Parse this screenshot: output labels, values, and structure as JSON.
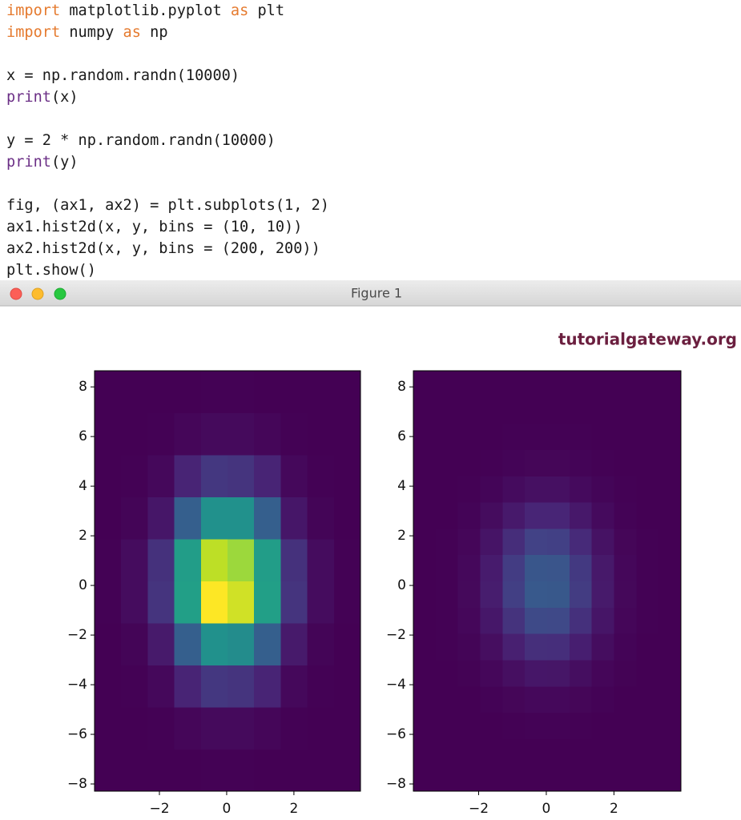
{
  "code": {
    "lines": [
      [
        {
          "text": "import",
          "color": "#e57a2e"
        },
        {
          "text": " matplotlib.pyplot ",
          "color": "#1a1a1a"
        },
        {
          "text": "as",
          "color": "#e57a2e"
        },
        {
          "text": " plt",
          "color": "#1a1a1a"
        }
      ],
      [
        {
          "text": "import",
          "color": "#e57a2e"
        },
        {
          "text": " numpy ",
          "color": "#1a1a1a"
        },
        {
          "text": "as",
          "color": "#e57a2e"
        },
        {
          "text": " np",
          "color": "#1a1a1a"
        }
      ],
      [],
      [
        {
          "text": "x = np.random.randn(10000)",
          "color": "#1a1a1a"
        }
      ],
      [
        {
          "text": "print",
          "color": "#6b2f86"
        },
        {
          "text": "(x)",
          "color": "#1a1a1a"
        }
      ],
      [],
      [
        {
          "text": "y = 2 * np.random.randn(10000)",
          "color": "#1a1a1a"
        }
      ],
      [
        {
          "text": "print",
          "color": "#6b2f86"
        },
        {
          "text": "(y)",
          "color": "#1a1a1a"
        }
      ],
      [],
      [
        {
          "text": "fig, (ax1, ax2) = plt.subplots(1, 2)",
          "color": "#1a1a1a"
        }
      ],
      [
        {
          "text": "ax1.hist2d(x, y, bins = (10, 10))",
          "color": "#1a1a1a"
        }
      ],
      [
        {
          "text": "ax2.hist2d(x, y, bins = (200, 200))",
          "color": "#1a1a1a"
        }
      ],
      [
        {
          "text": "plt.show()",
          "color": "#1a1a1a"
        }
      ]
    ]
  },
  "window": {
    "title": "Figure 1"
  },
  "watermark": "tutorialgateway.org",
  "chart_data": [
    {
      "type": "heatmap",
      "cmap": "viridis",
      "clim": [
        0,
        1000
      ],
      "xlim": [
        -3.93,
        3.98
      ],
      "ylim": [
        -8.29,
        8.65
      ],
      "xticks": [
        {
          "value": -2,
          "label": "−2"
        },
        0,
        2
      ],
      "yticks": [
        {
          "value": -8,
          "label": "−8"
        },
        {
          "value": -6,
          "label": "−6"
        },
        {
          "value": -4,
          "label": "−4"
        },
        {
          "value": -2,
          "label": "−2"
        },
        0,
        2,
        4,
        6,
        8
      ],
      "z": [
        [
          0,
          0,
          0,
          1,
          2,
          2,
          1,
          0,
          0,
          0
        ],
        [
          0,
          0,
          3,
          15,
          25,
          25,
          15,
          3,
          0,
          0
        ],
        [
          0,
          2,
          20,
          100,
          160,
          150,
          100,
          20,
          2,
          0
        ],
        [
          1,
          10,
          70,
          300,
          500,
          480,
          300,
          70,
          10,
          1
        ],
        [
          2,
          30,
          150,
          560,
          1000,
          930,
          560,
          150,
          30,
          2
        ],
        [
          2,
          30,
          140,
          550,
          900,
          850,
          550,
          140,
          30,
          2
        ],
        [
          1,
          10,
          60,
          300,
          500,
          500,
          300,
          60,
          10,
          1
        ],
        [
          0,
          2,
          20,
          100,
          160,
          150,
          100,
          20,
          2,
          0
        ],
        [
          0,
          0,
          3,
          15,
          25,
          25,
          15,
          3,
          0,
          0
        ],
        [
          0,
          0,
          0,
          1,
          2,
          2,
          1,
          0,
          0,
          0
        ]
      ]
    },
    {
      "type": "heatmap",
      "cmap": "viridis",
      "clim": [
        0,
        9
      ],
      "xlim": [
        -3.93,
        3.98
      ],
      "ylim": [
        -8.29,
        8.65
      ],
      "xticks": [
        {
          "value": -2,
          "label": "−2"
        },
        0,
        2
      ],
      "yticks": [
        {
          "value": -8,
          "label": "−8"
        },
        {
          "value": -6,
          "label": "−6"
        },
        {
          "value": -4,
          "label": "−4"
        },
        {
          "value": -2,
          "label": "−2"
        },
        0,
        2,
        4,
        6,
        8
      ],
      "z": [
        [
          0,
          0,
          0,
          0,
          0,
          0,
          0,
          0,
          0,
          0,
          0,
          0
        ],
        [
          0,
          0,
          0,
          0,
          0.01,
          0.01,
          0.01,
          0.01,
          0,
          0,
          0,
          0
        ],
        [
          0,
          0,
          0,
          0.01,
          0.03,
          0.05,
          0.05,
          0.03,
          0.01,
          0,
          0,
          0
        ],
        [
          0,
          0,
          0.01,
          0.05,
          0.12,
          0.19,
          0.18,
          0.12,
          0.05,
          0.01,
          0,
          0
        ],
        [
          0,
          0.01,
          0.04,
          0.15,
          0.35,
          0.54,
          0.53,
          0.33,
          0.14,
          0.04,
          0.01,
          0
        ],
        [
          0,
          0.02,
          0.09,
          0.34,
          0.79,
          1.2,
          1.18,
          0.75,
          0.31,
          0.08,
          0.01,
          0
        ],
        [
          0,
          0.03,
          0.16,
          0.56,
          1.31,
          1.99,
          1.95,
          1.24,
          0.51,
          0.13,
          0.02,
          0
        ],
        [
          0,
          0.03,
          0.2,
          0.71,
          1.65,
          2.51,
          2.46,
          1.57,
          0.64,
          0.17,
          0.03,
          0
        ],
        [
          0,
          0.03,
          0.19,
          0.68,
          1.58,
          2.39,
          2.35,
          1.49,
          0.61,
          0.16,
          0.03,
          0
        ],
        [
          0,
          0.02,
          0.14,
          0.49,
          1.14,
          1.73,
          1.7,
          1.08,
          0.44,
          0.12,
          0.02,
          0
        ],
        [
          0,
          0.01,
          0.07,
          0.27,
          0.62,
          0.94,
          0.93,
          0.59,
          0.24,
          0.06,
          0.01,
          0
        ],
        [
          0,
          0.01,
          0.03,
          0.11,
          0.26,
          0.39,
          0.38,
          0.24,
          0.1,
          0.03,
          0,
          0
        ],
        [
          0,
          0,
          0.01,
          0.03,
          0.08,
          0.12,
          0.12,
          0.07,
          0.03,
          0.01,
          0,
          0
        ],
        [
          0,
          0,
          0,
          0.01,
          0.02,
          0.03,
          0.03,
          0.02,
          0.01,
          0,
          0,
          0
        ],
        [
          0,
          0,
          0,
          0,
          0,
          0.01,
          0.01,
          0,
          0,
          0,
          0,
          0
        ],
        [
          0,
          0,
          0,
          0,
          0,
          0,
          0,
          0,
          0,
          0,
          0,
          0
        ]
      ]
    }
  ]
}
